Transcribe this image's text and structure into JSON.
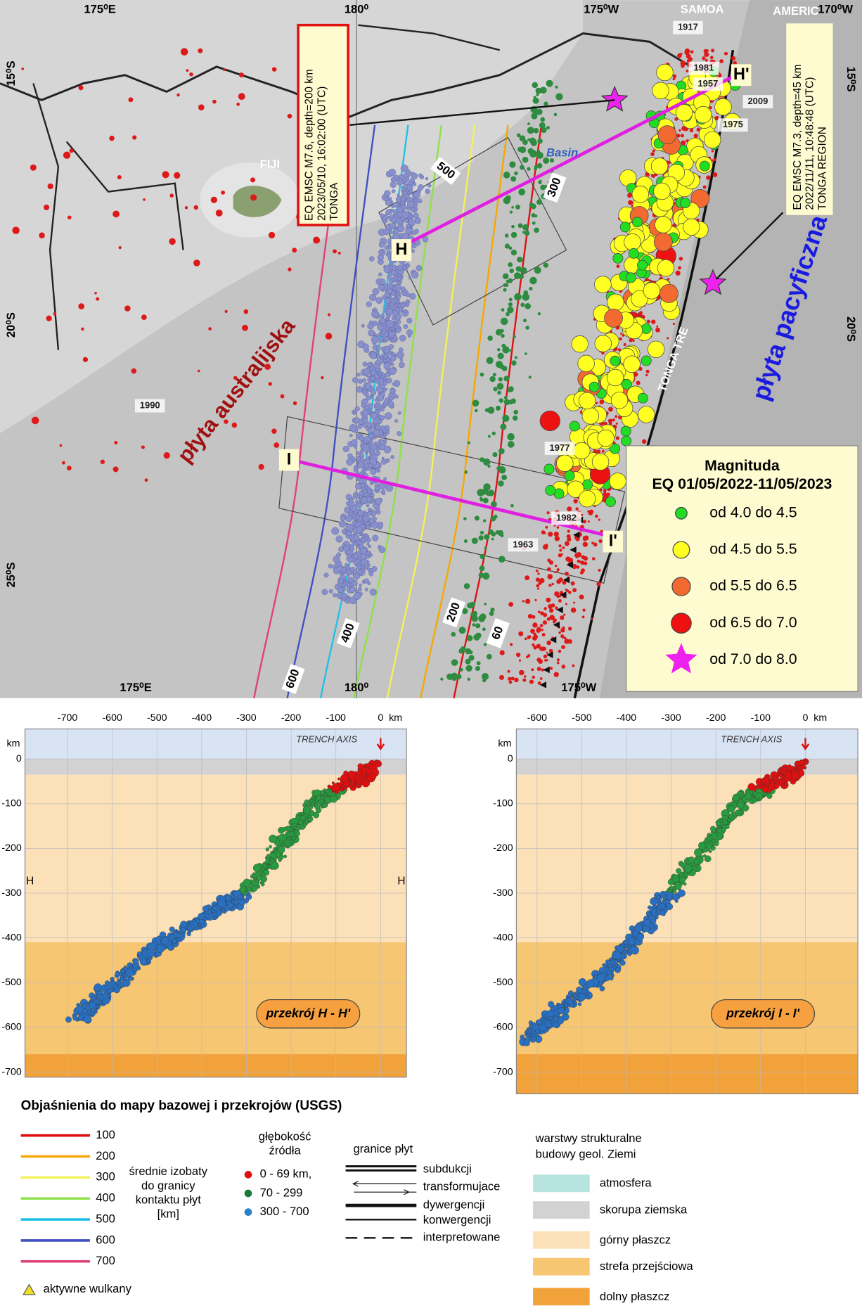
{
  "map": {
    "lon_top": [
      "175⁰E",
      "180⁰",
      "175⁰W",
      "170⁰W"
    ],
    "lon_bottom": [
      "175⁰E",
      "180⁰",
      "175⁰W"
    ],
    "lat_left": [
      "15⁰S",
      "20⁰S",
      "25⁰S"
    ],
    "lat_right": [
      "15⁰S",
      "20⁰S"
    ],
    "places": [
      "SAMOA",
      "AMERIC",
      "FIJI",
      "Basin",
      "TONGA TRE"
    ],
    "plates": [
      "płyta australijska",
      "płyta pacyficzna"
    ],
    "years": [
      "1917",
      "1981",
      "1957",
      "2009",
      "1975",
      "1990",
      "1977",
      "1982",
      "1963"
    ],
    "isobaths": [
      "500",
      "300",
      "400",
      "200",
      "60",
      "600"
    ],
    "profiles": [
      "H",
      "H'",
      "I",
      "I'"
    ],
    "events": [
      [
        "EQ EMSC M7.6, depth=200 km",
        "2023/05/10, 16:02:00 (UTC)",
        "TONGA"
      ],
      [
        "EQ EMSC M7.3, depth=45 km",
        "2022/11/11, 10:48:48 (UTC)",
        "TONGA REGION"
      ]
    ],
    "legend": {
      "title": "Magnituda",
      "subtitle": "EQ  01/05/2022-11/05/2023",
      "items": [
        {
          "label": "od 4.0  do  4.5",
          "color": "#22dd22"
        },
        {
          "label": "od 4.5  do  5.5",
          "color": "#ffff22"
        },
        {
          "label": "od 5.5  do  6.5",
          "color": "#f26a30"
        },
        {
          "label": "od 6.5  do  7.0",
          "color": "#ee1111"
        },
        {
          "label": "od 7.0  do  8.0",
          "color": "#ee22ee"
        }
      ]
    }
  },
  "sections": [
    {
      "x_ticks": [
        -700,
        -600,
        -500,
        -400,
        -300,
        -200,
        -100,
        0
      ],
      "y_ticks": [
        0,
        -100,
        -200,
        -300,
        -400,
        -500,
        -600,
        -700
      ],
      "unit": "km",
      "trench": "TRENCH AXIS",
      "title": "przekrój H - H'",
      "ends": [
        "H",
        "H"
      ]
    },
    {
      "x_ticks": [
        -600,
        -500,
        -400,
        -300,
        -200,
        -100,
        0
      ],
      "y_ticks": [
        0,
        -100,
        -200,
        -300,
        -400,
        -500,
        -600,
        -700
      ],
      "unit": "km",
      "trench": "TRENCH AXIS",
      "title": "przekrój I - I'"
    }
  ],
  "explanation": {
    "title": "Objaśnienia do mapy bazowej i przekrojów (USGS)",
    "isobaths": [
      {
        "value": 100,
        "color": "#e01010"
      },
      {
        "value": 200,
        "color": "#f5a800"
      },
      {
        "value": 300,
        "color": "#f2f25a"
      },
      {
        "value": 400,
        "color": "#8fe04a"
      },
      {
        "value": 500,
        "color": "#20c0e8"
      },
      {
        "value": 600,
        "color": "#4050c0"
      },
      {
        "value": 700,
        "color": "#e0407a"
      }
    ],
    "isobath_label": [
      "średnie izobaty",
      "do granicy",
      "kontaktu płyt",
      "[km]"
    ],
    "volcano": "aktywne wulkany",
    "depth_title": [
      "głębokość",
      "źródła"
    ],
    "depth_items": [
      {
        "label": "0 - 69 km,",
        "color": "#e01010"
      },
      {
        "label": "70 - 299",
        "color": "#1a7a3a"
      },
      {
        "label": "300 - 700",
        "color": "#2a80c8"
      }
    ],
    "boundary_title": "granice płyt",
    "boundaries": [
      "subdukcji",
      "transformujace",
      "dywergencji",
      "konwergencji",
      "interpretowane"
    ],
    "layers_title": [
      "warstwy strukturalne",
      "budowy geol. Ziemi"
    ],
    "layers": [
      {
        "label": "atmosfera",
        "color": "#b8e4e0"
      },
      {
        "label": "skorupa ziemska",
        "color": "#d2d2d2"
      },
      {
        "label": "górny płaszcz",
        "color": "#fbe0b8"
      },
      {
        "label": "strefa przejściowa",
        "color": "#f7c672"
      },
      {
        "label": "dolny płaszcz",
        "color": "#f2a23a"
      }
    ]
  }
}
